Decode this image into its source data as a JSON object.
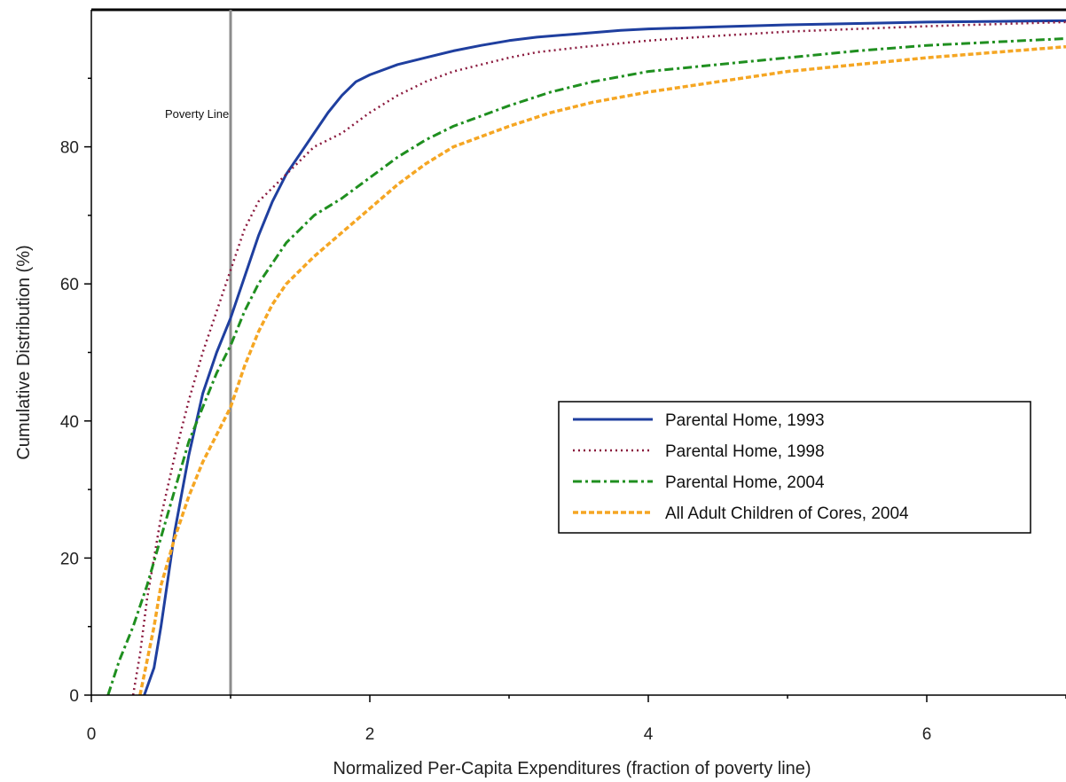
{
  "chart_data": {
    "type": "line",
    "title": "",
    "xlabel": "Normalized Per-Capita Expenditures (fraction of poverty line)",
    "ylabel": "Cumulative Distribution (%)",
    "xlim": [
      0,
      7
    ],
    "ylim": [
      0,
      100
    ],
    "xticks": [
      0,
      2,
      4,
      6
    ],
    "yticks": [
      0,
      20,
      40,
      60,
      80
    ],
    "grid": false,
    "legend_position": "center-right",
    "annotations": [
      {
        "text": "Poverty Line",
        "x": 1,
        "type": "vertical-line",
        "color": "#8c8c8c"
      }
    ],
    "series": [
      {
        "name": "Parental Home, 1993",
        "color": "#1f3f9f",
        "style": "solid",
        "x": [
          0.38,
          0.45,
          0.5,
          0.55,
          0.6,
          0.7,
          0.8,
          0.9,
          1.0,
          1.1,
          1.2,
          1.3,
          1.4,
          1.5,
          1.6,
          1.7,
          1.8,
          1.9,
          2.0,
          2.2,
          2.4,
          2.6,
          2.8,
          3.0,
          3.2,
          3.5,
          3.8,
          4.0,
          4.5,
          5.0,
          5.5,
          6.0,
          6.5,
          7.0
        ],
        "y": [
          0,
          4,
          10,
          17,
          24,
          35,
          44,
          50,
          55,
          61,
          67,
          72,
          76,
          79,
          82,
          85,
          87.5,
          89.5,
          90.5,
          92,
          93,
          94,
          94.8,
          95.5,
          96,
          96.5,
          97,
          97.2,
          97.5,
          97.8,
          98,
          98.2,
          98.3,
          98.4
        ]
      },
      {
        "name": "Parental Home, 1998",
        "color": "#8b1a3e",
        "style": "dotted",
        "x": [
          0.3,
          0.35,
          0.4,
          0.45,
          0.5,
          0.6,
          0.7,
          0.8,
          0.9,
          1.0,
          1.1,
          1.2,
          1.3,
          1.4,
          1.5,
          1.6,
          1.7,
          1.8,
          1.9,
          2.0,
          2.2,
          2.4,
          2.6,
          2.8,
          3.0,
          3.2,
          3.5,
          4.0,
          4.5,
          5.0,
          5.5,
          6.0,
          6.5,
          7.0
        ],
        "y": [
          0,
          6,
          14,
          20,
          26,
          35,
          43,
          50,
          56,
          62,
          68,
          72,
          74,
          76,
          78,
          80,
          81,
          82,
          83.5,
          85,
          87.5,
          89.5,
          91,
          92,
          93,
          93.8,
          94.5,
          95.5,
          96.2,
          96.8,
          97.2,
          97.6,
          97.9,
          98.2
        ]
      },
      {
        "name": "Parental Home, 2004",
        "color": "#1f8f1f",
        "style": "dash-dot",
        "x": [
          0.12,
          0.2,
          0.3,
          0.4,
          0.5,
          0.6,
          0.7,
          0.8,
          0.9,
          1.0,
          1.1,
          1.2,
          1.3,
          1.4,
          1.5,
          1.6,
          1.8,
          2.0,
          2.2,
          2.4,
          2.6,
          2.8,
          3.0,
          3.3,
          3.6,
          4.0,
          4.5,
          5.0,
          5.5,
          6.0,
          6.5,
          7.0
        ],
        "y": [
          0,
          5,
          10,
          16,
          23,
          30,
          37,
          42,
          47,
          51,
          56,
          60,
          63,
          66,
          68,
          70,
          72.5,
          75.5,
          78.5,
          81,
          83,
          84.5,
          86,
          88,
          89.5,
          91,
          92,
          93,
          94,
          94.8,
          95.3,
          95.8
        ]
      },
      {
        "name": "All Adult Children of Cores, 2004",
        "color": "#f5a623",
        "style": "dashed",
        "x": [
          0.35,
          0.4,
          0.45,
          0.5,
          0.6,
          0.7,
          0.8,
          0.9,
          1.0,
          1.1,
          1.2,
          1.3,
          1.4,
          1.5,
          1.6,
          1.8,
          2.0,
          2.2,
          2.4,
          2.6,
          2.8,
          3.0,
          3.3,
          3.6,
          4.0,
          4.5,
          5.0,
          5.5,
          6.0,
          6.5,
          7.0
        ],
        "y": [
          0,
          5,
          10,
          16,
          23,
          29,
          34,
          38,
          42,
          48,
          53,
          57,
          60,
          62,
          64,
          67.5,
          71,
          74.5,
          77.5,
          80,
          81.5,
          83,
          85,
          86.5,
          88,
          89.5,
          91,
          92,
          93,
          93.8,
          94.6
        ]
      }
    ]
  }
}
